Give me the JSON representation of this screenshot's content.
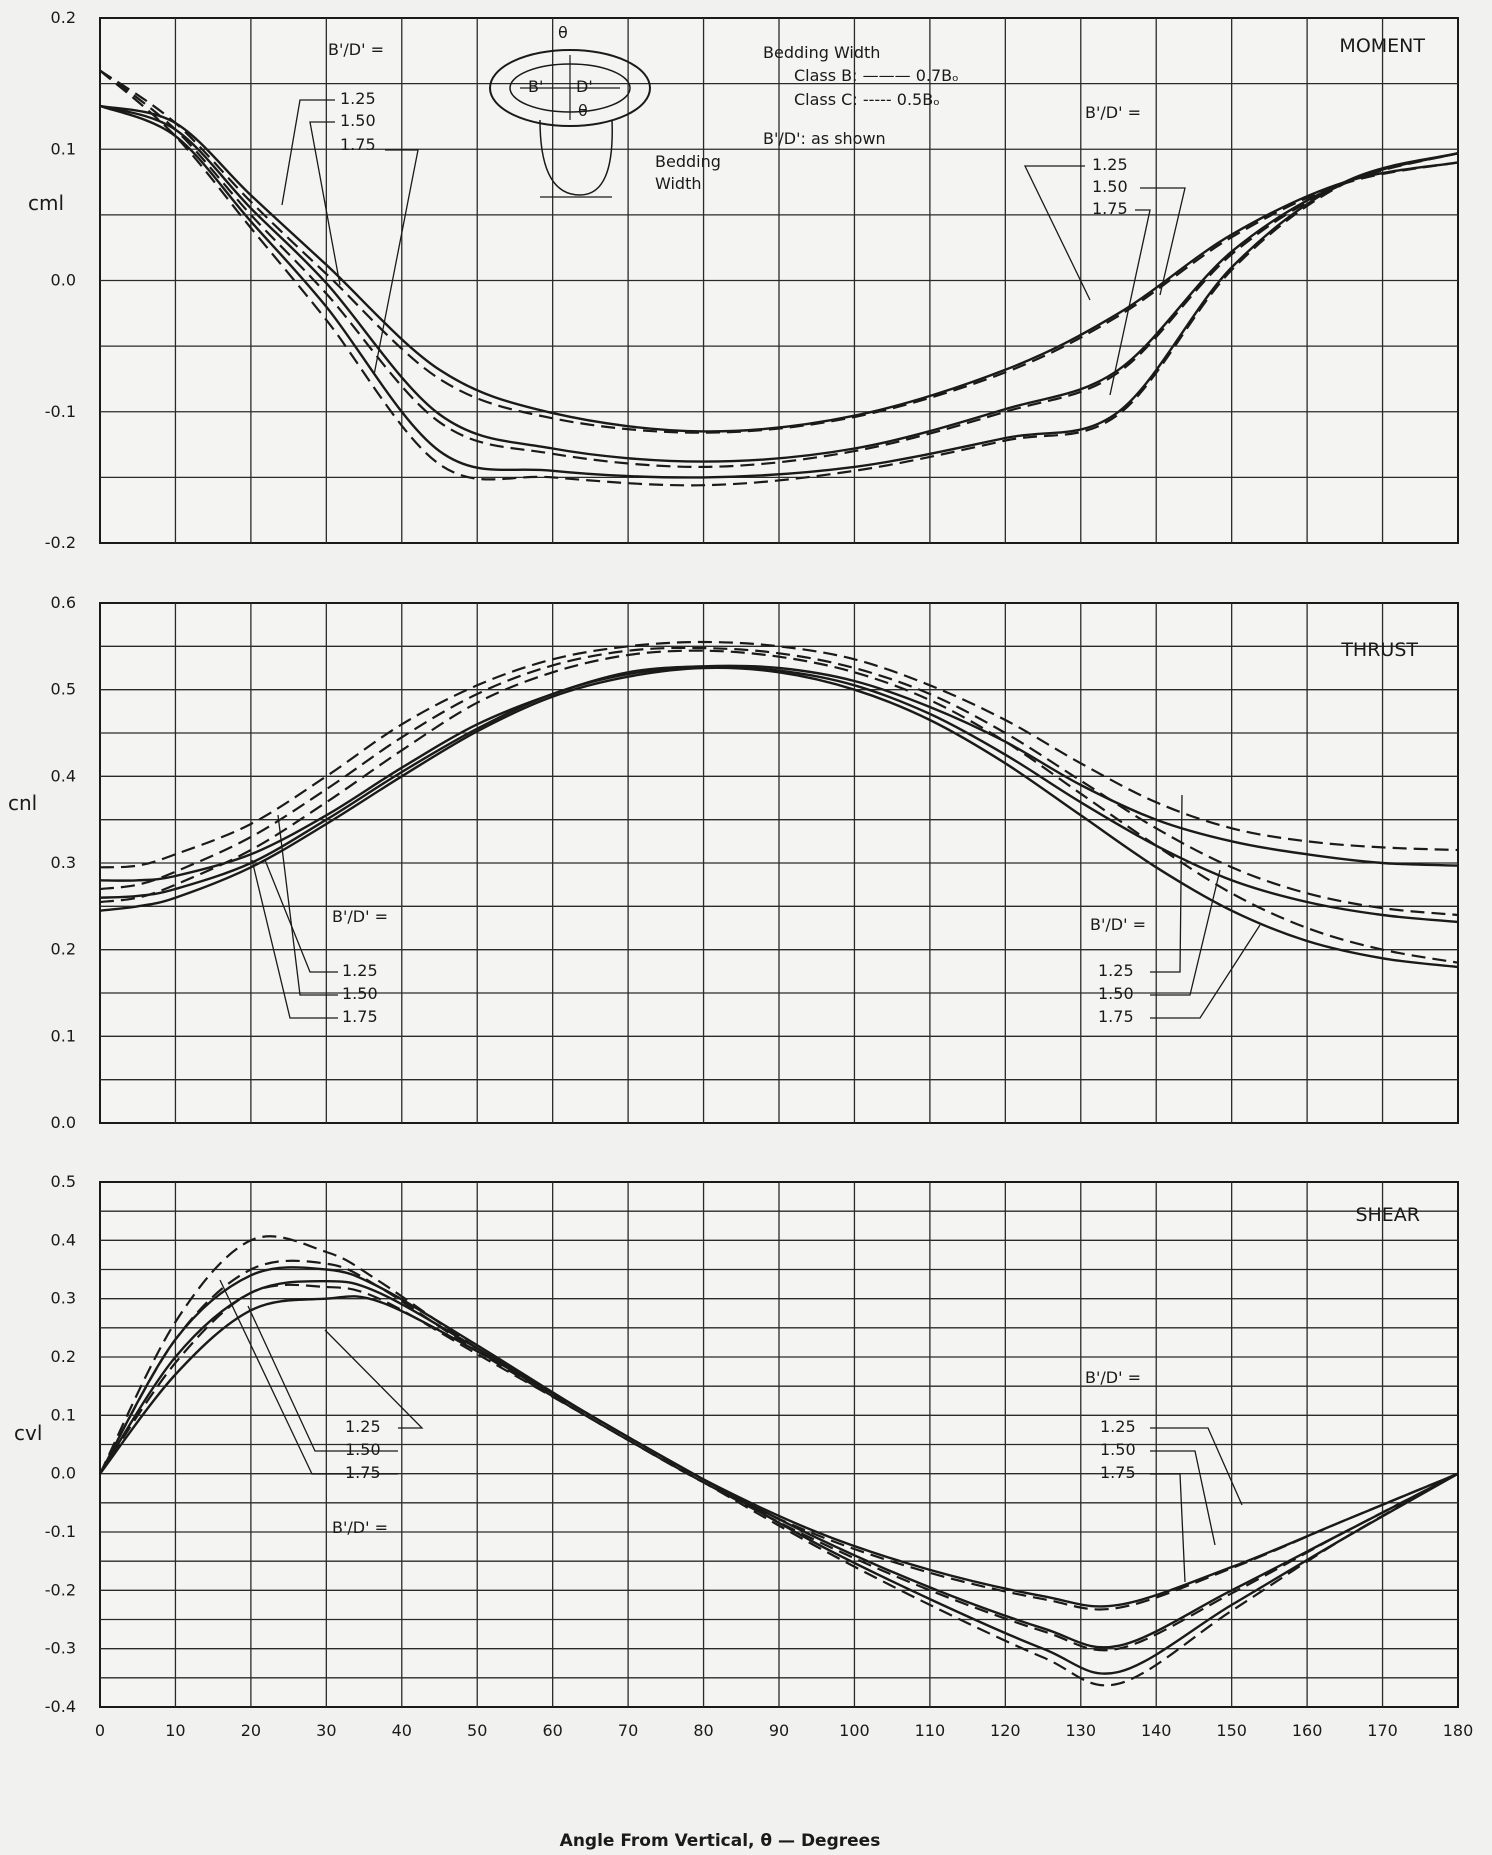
{
  "x_axis_label": "Angle From Vertical, θ — Degrees",
  "x_ticks": [
    0,
    10,
    20,
    30,
    40,
    50,
    60,
    70,
    80,
    90,
    100,
    110,
    120,
    130,
    140,
    150,
    160,
    170,
    180
  ],
  "diagram": {
    "labels": [
      "θ",
      "B'",
      "D'",
      "θ"
    ],
    "bedding_label_1": "Bedding",
    "bedding_label_2": "Width"
  },
  "legend": {
    "heading": "Bedding Width",
    "class_b": "Class B: ——— 0.7Bₒ",
    "class_c": "Class C: ----- 0.5Bₒ",
    "ratio_note": "B'/D':  as shown"
  },
  "ratio_symbol": "B'/D' =",
  "ratio_values": [
    "1.25",
    "1.50",
    "1.75"
  ],
  "chart_data": [
    {
      "type": "line",
      "title": "MOMENT",
      "ylabel": "cml",
      "xlim": [
        0,
        180
      ],
      "ylim": [
        -0.2,
        0.2
      ],
      "yticks": [
        "0.2",
        "0.1",
        "0.0",
        "-0.1",
        "-0.2"
      ],
      "grid": true,
      "series": [
        {
          "name": "Class B 1.25",
          "style": "solid",
          "x": [
            0,
            10,
            20,
            30,
            45,
            60,
            80,
            100,
            120,
            135,
            150,
            165,
            180
          ],
          "y": [
            0.133,
            0.12,
            0.065,
            0.012,
            -0.068,
            -0.101,
            -0.115,
            -0.103,
            -0.068,
            -0.025,
            0.035,
            0.075,
            0.09
          ]
        },
        {
          "name": "Class B 1.50",
          "style": "solid",
          "x": [
            0,
            10,
            20,
            30,
            45,
            60,
            80,
            100,
            120,
            135,
            150,
            165,
            180
          ],
          "y": [
            0.133,
            0.115,
            0.055,
            -0.002,
            -0.102,
            -0.128,
            -0.138,
            -0.128,
            -0.098,
            -0.068,
            0.022,
            0.075,
            0.097
          ]
        },
        {
          "name": "Class B 1.75",
          "style": "solid",
          "x": [
            0,
            10,
            20,
            30,
            45,
            60,
            80,
            100,
            120,
            135,
            150,
            165,
            180
          ],
          "y": [
            0.133,
            0.11,
            0.045,
            -0.02,
            -0.13,
            -0.145,
            -0.15,
            -0.142,
            -0.12,
            -0.1,
            0.01,
            0.075,
            0.097
          ]
        },
        {
          "name": "Class C 1.25",
          "style": "dashed",
          "x": [
            0,
            10,
            20,
            30,
            45,
            60,
            80,
            100,
            120,
            135,
            150,
            165,
            180
          ],
          "y": [
            0.16,
            0.12,
            0.06,
            0.005,
            -0.075,
            -0.105,
            -0.116,
            -0.104,
            -0.07,
            -0.027,
            0.033,
            0.074,
            0.09
          ]
        },
        {
          "name": "Class C 1.50",
          "style": "dashed",
          "x": [
            0,
            10,
            20,
            30,
            45,
            60,
            80,
            100,
            120,
            135,
            150,
            165,
            180
          ],
          "y": [
            0.16,
            0.115,
            0.05,
            -0.01,
            -0.108,
            -0.132,
            -0.142,
            -0.13,
            -0.1,
            -0.07,
            0.02,
            0.074,
            0.097
          ]
        },
        {
          "name": "Class C 1.75",
          "style": "dashed",
          "x": [
            0,
            10,
            20,
            30,
            45,
            60,
            80,
            100,
            120,
            135,
            150,
            165,
            180
          ],
          "y": [
            0.16,
            0.11,
            0.04,
            -0.03,
            -0.14,
            -0.15,
            -0.156,
            -0.145,
            -0.122,
            -0.102,
            0.008,
            0.074,
            0.097
          ]
        }
      ]
    },
    {
      "type": "line",
      "title": "THRUST",
      "ylabel": "cnl",
      "xlim": [
        0,
        180
      ],
      "ylim": [
        0,
        0.6
      ],
      "yticks": [
        "0.6",
        "0.5",
        "0.4",
        "0.3",
        "0.2",
        "0.1",
        "0.0"
      ],
      "grid": true,
      "series": [
        {
          "name": "Class B 1.25",
          "style": "solid",
          "x": [
            0,
            5,
            10,
            20,
            30,
            40,
            50,
            60,
            70,
            80,
            90,
            100,
            110,
            120,
            130,
            140,
            150,
            160,
            170,
            180
          ],
          "y": [
            0.28,
            0.28,
            0.285,
            0.31,
            0.355,
            0.41,
            0.46,
            0.495,
            0.52,
            0.527,
            0.525,
            0.51,
            0.48,
            0.44,
            0.39,
            0.35,
            0.325,
            0.31,
            0.3,
            0.297
          ]
        },
        {
          "name": "Class B 1.50",
          "style": "solid",
          "x": [
            0,
            5,
            10,
            20,
            30,
            40,
            50,
            60,
            70,
            80,
            90,
            100,
            110,
            120,
            130,
            140,
            150,
            160,
            170,
            180
          ],
          "y": [
            0.26,
            0.262,
            0.27,
            0.3,
            0.35,
            0.405,
            0.455,
            0.495,
            0.518,
            0.526,
            0.522,
            0.505,
            0.472,
            0.425,
            0.37,
            0.32,
            0.28,
            0.255,
            0.24,
            0.232
          ]
        },
        {
          "name": "Class B 1.75",
          "style": "solid",
          "x": [
            0,
            5,
            10,
            20,
            30,
            40,
            50,
            60,
            70,
            80,
            90,
            100,
            110,
            120,
            130,
            140,
            150,
            160,
            170,
            180
          ],
          "y": [
            0.245,
            0.25,
            0.26,
            0.295,
            0.345,
            0.4,
            0.452,
            0.492,
            0.515,
            0.525,
            0.52,
            0.5,
            0.465,
            0.415,
            0.355,
            0.295,
            0.245,
            0.21,
            0.19,
            0.18
          ]
        },
        {
          "name": "Class C 1.25",
          "style": "dashed",
          "x": [
            0,
            5,
            10,
            20,
            30,
            40,
            50,
            60,
            70,
            80,
            90,
            100,
            110,
            120,
            130,
            140,
            150,
            160,
            170,
            180
          ],
          "y": [
            0.295,
            0.297,
            0.31,
            0.345,
            0.4,
            0.46,
            0.505,
            0.535,
            0.55,
            0.555,
            0.55,
            0.535,
            0.505,
            0.465,
            0.415,
            0.37,
            0.34,
            0.325,
            0.318,
            0.315
          ]
        },
        {
          "name": "Class C 1.50",
          "style": "dashed",
          "x": [
            0,
            5,
            10,
            20,
            30,
            40,
            50,
            60,
            70,
            80,
            90,
            100,
            110,
            120,
            130,
            140,
            150,
            160,
            170,
            180
          ],
          "y": [
            0.27,
            0.275,
            0.29,
            0.33,
            0.385,
            0.445,
            0.495,
            0.528,
            0.545,
            0.548,
            0.542,
            0.525,
            0.495,
            0.45,
            0.395,
            0.34,
            0.295,
            0.265,
            0.248,
            0.24
          ]
        },
        {
          "name": "Class C 1.75",
          "style": "dashed",
          "x": [
            0,
            5,
            10,
            20,
            30,
            40,
            50,
            60,
            70,
            80,
            90,
            100,
            110,
            120,
            130,
            140,
            150,
            160,
            170,
            180
          ],
          "y": [
            0.255,
            0.26,
            0.275,
            0.315,
            0.37,
            0.43,
            0.485,
            0.52,
            0.54,
            0.545,
            0.538,
            0.52,
            0.488,
            0.44,
            0.38,
            0.32,
            0.265,
            0.225,
            0.2,
            0.185
          ]
        }
      ]
    },
    {
      "type": "line",
      "title": "SHEAR",
      "ylabel": "cvl",
      "xlim": [
        0,
        180
      ],
      "ylim": [
        -0.4,
        0.5
      ],
      "yticks": [
        "0.5",
        "0.4",
        "0.3",
        "0.2",
        "0.1",
        "0.0",
        "-0.1",
        "-0.2",
        "-0.3",
        "-0.4"
      ],
      "grid": true,
      "series": [
        {
          "name": "Class B 1.25",
          "style": "solid",
          "x": [
            0,
            10,
            20,
            30,
            37,
            50,
            65,
            80,
            95,
            110,
            125,
            135,
            150,
            165,
            180
          ],
          "y": [
            0,
            0.17,
            0.28,
            0.3,
            0.295,
            0.21,
            0.1,
            -0.01,
            -0.1,
            -0.165,
            -0.21,
            -0.225,
            -0.16,
            -0.08,
            0
          ]
        },
        {
          "name": "Class B 1.50",
          "style": "solid",
          "x": [
            0,
            10,
            20,
            30,
            37,
            50,
            65,
            80,
            95,
            110,
            125,
            135,
            150,
            165,
            180
          ],
          "y": [
            0,
            0.2,
            0.31,
            0.33,
            0.31,
            0.215,
            0.1,
            -0.01,
            -0.11,
            -0.195,
            -0.265,
            -0.295,
            -0.2,
            -0.1,
            0
          ]
        },
        {
          "name": "Class B 1.75",
          "style": "solid",
          "x": [
            0,
            10,
            20,
            30,
            37,
            50,
            65,
            80,
            95,
            110,
            125,
            135,
            150,
            165,
            180
          ],
          "y": [
            0,
            0.23,
            0.34,
            0.35,
            0.32,
            0.22,
            0.1,
            -0.01,
            -0.12,
            -0.215,
            -0.3,
            -0.34,
            -0.225,
            -0.11,
            0
          ]
        },
        {
          "name": "Class C 1.25",
          "style": "dashed",
          "x": [
            0,
            10,
            20,
            30,
            37,
            50,
            65,
            80,
            95,
            110,
            125,
            135,
            150,
            165,
            180
          ],
          "y": [
            0,
            0.19,
            0.31,
            0.32,
            0.3,
            0.205,
            0.095,
            -0.015,
            -0.105,
            -0.17,
            -0.215,
            -0.23,
            -0.162,
            -0.08,
            0
          ]
        },
        {
          "name": "Class C 1.50",
          "style": "dashed",
          "x": [
            0,
            10,
            20,
            30,
            37,
            50,
            65,
            80,
            95,
            110,
            125,
            135,
            150,
            165,
            180
          ],
          "y": [
            0,
            0.23,
            0.35,
            0.36,
            0.32,
            0.21,
            0.095,
            -0.015,
            -0.115,
            -0.2,
            -0.27,
            -0.3,
            -0.205,
            -0.1,
            0
          ]
        },
        {
          "name": "Class C 1.75",
          "style": "dashed",
          "x": [
            0,
            10,
            20,
            30,
            37,
            50,
            65,
            80,
            95,
            110,
            125,
            135,
            150,
            165,
            180
          ],
          "y": [
            0,
            0.26,
            0.4,
            0.38,
            0.33,
            0.215,
            0.095,
            -0.015,
            -0.125,
            -0.225,
            -0.315,
            -0.36,
            -0.235,
            -0.11,
            0
          ]
        }
      ]
    }
  ]
}
